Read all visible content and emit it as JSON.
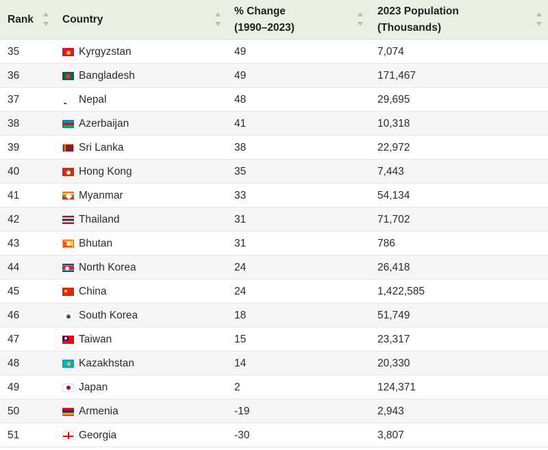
{
  "header": {
    "rank": "Rank",
    "country": "Country",
    "change_line1": "% Change",
    "change_line2": "(1990–2023)",
    "pop_line1": "2023 Population",
    "pop_line2": "(Thousands)"
  },
  "rows": [
    {
      "rank": "35",
      "country": "Kyrgyzstan",
      "change": "49",
      "population": "7,074",
      "flag": "kyrgyzstan-flag-icon"
    },
    {
      "rank": "36",
      "country": "Bangladesh",
      "change": "49",
      "population": "171,467",
      "flag": "bangladesh-flag-icon"
    },
    {
      "rank": "37",
      "country": "Nepal",
      "change": "48",
      "population": "29,695",
      "flag": "nepal-flag-icon"
    },
    {
      "rank": "38",
      "country": "Azerbaijan",
      "change": "41",
      "population": "10,318",
      "flag": "azerbaijan-flag-icon"
    },
    {
      "rank": "39",
      "country": "Sri Lanka",
      "change": "38",
      "population": "22,972",
      "flag": "sri-lanka-flag-icon"
    },
    {
      "rank": "40",
      "country": "Hong Kong",
      "change": "35",
      "population": "7,443",
      "flag": "hong-kong-flag-icon"
    },
    {
      "rank": "41",
      "country": "Myanmar",
      "change": "33",
      "population": "54,134",
      "flag": "myanmar-flag-icon"
    },
    {
      "rank": "42",
      "country": "Thailand",
      "change": "31",
      "population": "71,702",
      "flag": "thailand-flag-icon"
    },
    {
      "rank": "43",
      "country": "Bhutan",
      "change": "31",
      "population": "786",
      "flag": "bhutan-flag-icon"
    },
    {
      "rank": "44",
      "country": "North Korea",
      "change": "24",
      "population": "26,418",
      "flag": "north-korea-flag-icon"
    },
    {
      "rank": "45",
      "country": "China",
      "change": "24",
      "population": "1,422,585",
      "flag": "china-flag-icon"
    },
    {
      "rank": "46",
      "country": "South Korea",
      "change": "18",
      "population": "51,749",
      "flag": "south-korea-flag-icon"
    },
    {
      "rank": "47",
      "country": "Taiwan",
      "change": "15",
      "population": "23,317",
      "flag": "taiwan-flag-icon"
    },
    {
      "rank": "48",
      "country": "Kazakhstan",
      "change": "14",
      "population": "20,330",
      "flag": "kazakhstan-flag-icon"
    },
    {
      "rank": "49",
      "country": "Japan",
      "change": "2",
      "population": "124,371",
      "flag": "japan-flag-icon"
    },
    {
      "rank": "50",
      "country": "Armenia",
      "change": "-19",
      "population": "2,943",
      "flag": "armenia-flag-icon"
    },
    {
      "rank": "51",
      "country": "Georgia",
      "change": "-30",
      "population": "3,807",
      "flag": "georgia-flag-icon"
    }
  ],
  "colors": {
    "header_bg": "#e9efe3",
    "alt_row_bg": "#f6f6f6",
    "sort_arrow": "#b9c2b1"
  }
}
